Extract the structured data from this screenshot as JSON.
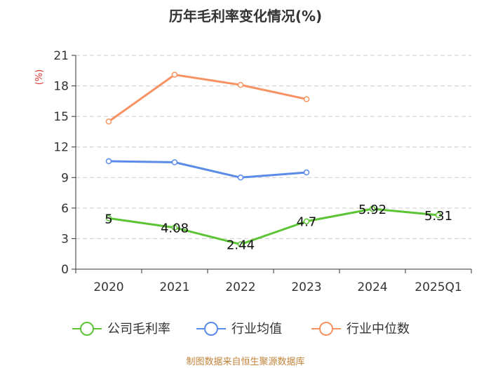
{
  "chart_data": {
    "type": "line",
    "title": "历年毛利率变化情况(%)",
    "ylabel": "(%)",
    "xlabel": "",
    "categories": [
      "2020",
      "2021",
      "2022",
      "2023",
      "2024",
      "2025Q1"
    ],
    "y_ticks": [
      0,
      3,
      6,
      9,
      12,
      15,
      18,
      21
    ],
    "ylim": [
      0,
      21
    ],
    "grid": true,
    "legend_position": "bottom",
    "series": [
      {
        "name": "公司毛利率",
        "color": "#5cc434",
        "values": [
          5,
          4.08,
          2.44,
          4.7,
          5.92,
          5.31
        ],
        "labels": [
          "5",
          "4.08",
          "2.44",
          "4.7",
          "5.92",
          "5.31"
        ]
      },
      {
        "name": "行业均值",
        "color": "#5b8be8",
        "values": [
          10.6,
          10.5,
          9.0,
          9.5,
          null,
          null
        ]
      },
      {
        "name": "行业中位数",
        "color": "#f79263",
        "values": [
          14.5,
          19.1,
          18.1,
          16.7,
          null,
          null
        ]
      }
    ]
  },
  "source": "制图数据来自恒生聚源数据库",
  "colors": {
    "axis": "#333333",
    "grid": "#cccccc",
    "ylabel": "#e03030",
    "title": "#333333"
  }
}
